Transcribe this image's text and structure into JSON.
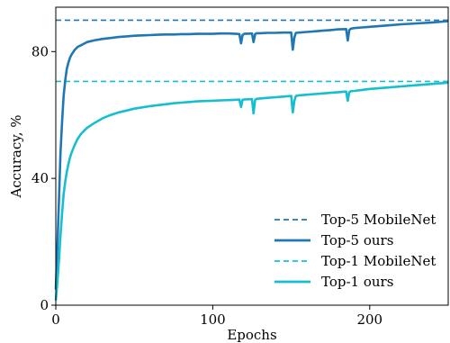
{
  "chart_data": {
    "type": "line",
    "xlabel": "Epochs",
    "ylabel": "Accuracy, %",
    "xlim": [
      0,
      250
    ],
    "ylim": [
      0,
      94
    ],
    "xticks": [
      {
        "value": 0,
        "label": "0"
      },
      {
        "value": 100,
        "label": "100"
      },
      {
        "value": 200,
        "label": "200"
      }
    ],
    "yticks": [
      {
        "value": 0,
        "label": "0"
      },
      {
        "value": 40,
        "label": "40"
      },
      {
        "value": 80,
        "label": "80"
      }
    ],
    "grid": false,
    "legend_position": "bottom-right",
    "reference_lines": [
      {
        "name": "Top-5 MobileNet",
        "y": 89.9,
        "color": "#1f77b4",
        "dash": true
      },
      {
        "name": "Top-1 MobileNet",
        "y": 70.6,
        "color": "#17becf",
        "dash": true
      }
    ],
    "series": [
      {
        "name": "Top-5 ours",
        "color": "#1f77b4",
        "x": [
          0,
          1,
          2,
          3,
          4,
          5,
          6,
          7,
          8,
          9,
          10,
          12,
          14,
          16,
          18,
          20,
          25,
          30,
          35,
          40,
          45,
          50,
          55,
          60,
          65,
          70,
          75,
          80,
          85,
          90,
          95,
          100,
          105,
          110,
          115,
          117,
          118,
          119,
          120,
          125,
          126,
          127,
          128,
          130,
          135,
          140,
          145,
          150,
          151,
          152,
          153,
          155,
          160,
          165,
          170,
          175,
          180,
          185,
          186,
          187,
          188,
          190,
          195,
          200,
          210,
          220,
          230,
          240,
          250
        ],
        "values": [
          5,
          18,
          33,
          48,
          58,
          66,
          71,
          74.5,
          76.5,
          78,
          79,
          80.5,
          81.5,
          82,
          82.5,
          83,
          83.6,
          84,
          84.3,
          84.6,
          84.8,
          85.0,
          85.1,
          85.2,
          85.3,
          85.4,
          85.4,
          85.5,
          85.5,
          85.6,
          85.6,
          85.6,
          85.7,
          85.7,
          85.6,
          85.5,
          82.6,
          85.2,
          85.6,
          85.7,
          83.0,
          85.5,
          85.8,
          85.8,
          85.9,
          85.9,
          86.0,
          86.0,
          80.6,
          84.5,
          85.9,
          86.0,
          86.2,
          86.4,
          86.6,
          86.8,
          87.0,
          87.1,
          83.5,
          86.8,
          87.2,
          87.4,
          87.6,
          87.8,
          88.2,
          88.6,
          88.9,
          89.2,
          89.6
        ]
      },
      {
        "name": "Top-1 ours",
        "color": "#17becf",
        "x": [
          0,
          1,
          2,
          3,
          4,
          5,
          6,
          7,
          8,
          9,
          10,
          12,
          14,
          16,
          18,
          20,
          25,
          30,
          35,
          40,
          45,
          50,
          55,
          60,
          65,
          70,
          75,
          80,
          85,
          90,
          95,
          100,
          105,
          110,
          115,
          117,
          118,
          119,
          120,
          125,
          126,
          127,
          128,
          130,
          135,
          140,
          145,
          150,
          151,
          152,
          153,
          155,
          160,
          165,
          170,
          175,
          180,
          185,
          186,
          187,
          188,
          190,
          195,
          200,
          210,
          220,
          230,
          240,
          250
        ],
        "values": [
          1.5,
          7,
          14,
          22,
          29,
          35,
          39,
          42,
          44.5,
          46.5,
          48,
          50.5,
          52.5,
          54,
          55,
          56,
          57.6,
          59,
          60,
          60.8,
          61.4,
          62,
          62.4,
          62.8,
          63.1,
          63.4,
          63.7,
          63.9,
          64.1,
          64.3,
          64.4,
          64.5,
          64.6,
          64.7,
          64.8,
          64.9,
          62.5,
          64.8,
          64.9,
          65.0,
          60.5,
          64.8,
          65.1,
          65.2,
          65.4,
          65.6,
          65.8,
          66.0,
          60.8,
          64.5,
          66.0,
          66.2,
          66.4,
          66.6,
          66.8,
          67.0,
          67.2,
          67.4,
          64.5,
          67.2,
          67.5,
          67.6,
          67.9,
          68.2,
          68.6,
          69.0,
          69.4,
          69.8,
          70.2
        ]
      }
    ],
    "legend": [
      {
        "label": "Top-5 MobileNet",
        "color": "#1f77b4",
        "dash": true
      },
      {
        "label": "Top-5 ours",
        "color": "#1f77b4",
        "dash": false
      },
      {
        "label": "Top-1 MobileNet",
        "color": "#17becf",
        "dash": true
      },
      {
        "label": "Top-1 ours",
        "color": "#17becf",
        "dash": false
      }
    ]
  }
}
